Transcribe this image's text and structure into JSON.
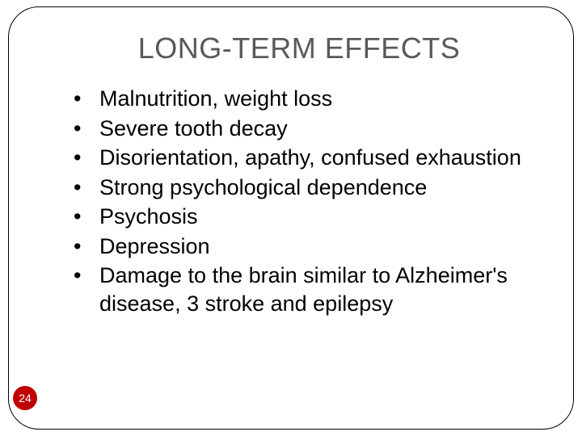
{
  "slide": {
    "title": "LONG-TERM EFFECTS",
    "title_color": "#595959",
    "title_fontsize": 36,
    "bullets": [
      "Malnutrition, weight loss",
      "Severe tooth decay",
      "Disorientation, apathy, confused exhaustion",
      "Strong psychological dependence",
      "Psychosis",
      "Depression",
      "Damage to the brain similar to Alzheimer's disease, 3 stroke and epilepsy"
    ],
    "bullet_fontsize": 27,
    "bullet_color": "#000000",
    "page_number": "24",
    "page_number_bg": "#c00000",
    "page_number_color": "#ffffff",
    "border_color": "#000000",
    "border_radius": 38,
    "background_color": "#ffffff"
  }
}
